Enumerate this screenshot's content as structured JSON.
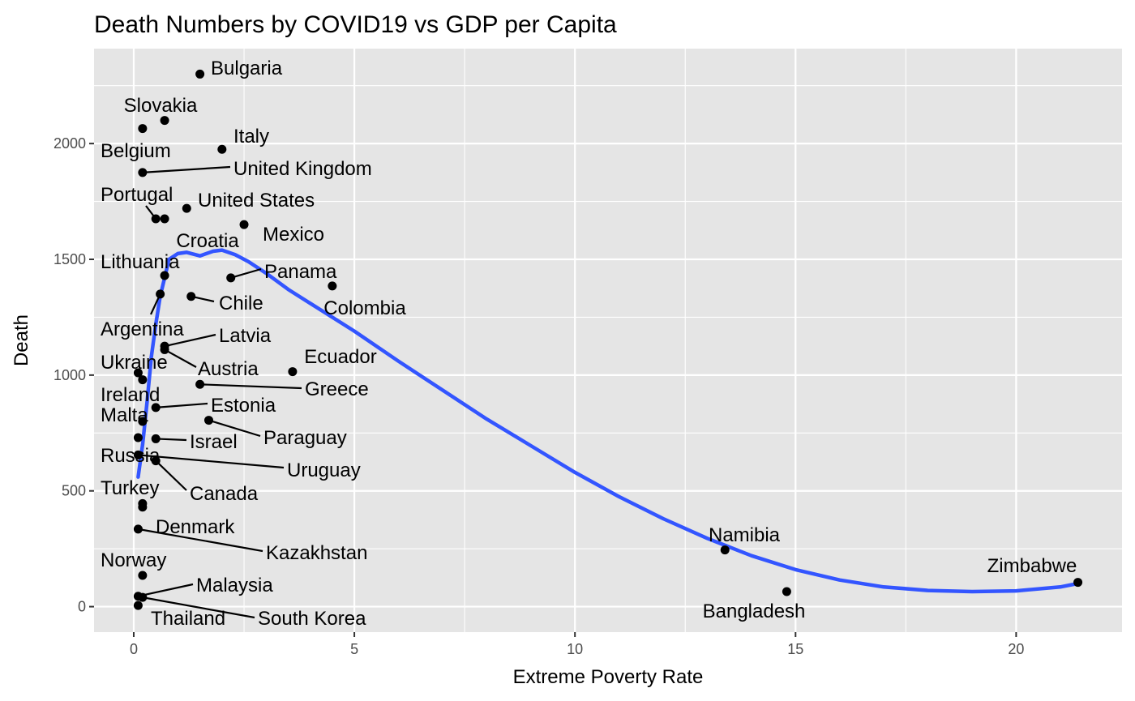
{
  "chart_data": {
    "type": "scatter",
    "title": "Death Numbers by COVID19 vs GDP per Capita",
    "xlabel": "Extreme Poverty Rate",
    "ylabel": "Death",
    "xlim": [
      -0.9,
      22.4
    ],
    "ylim": [
      -110,
      2410
    ],
    "x_ticks": [
      0,
      5,
      10,
      15,
      20
    ],
    "y_ticks": [
      0,
      500,
      1000,
      1500,
      2000
    ],
    "grid": true,
    "legend": "none",
    "colors": {
      "panel": "#e5e5e5",
      "grid": "#ffffff",
      "point": "#000000",
      "smooth": "#3355ff",
      "tick_text": "#4d4d4d"
    },
    "points": [
      {
        "label": "Bulgaria",
        "x": 1.5,
        "y": 2300
      },
      {
        "label": "Slovakia",
        "x": 0.7,
        "y": 2100
      },
      {
        "label": "Belgium",
        "x": 0.2,
        "y": 2065
      },
      {
        "label": "Italy",
        "x": 2.0,
        "y": 1975
      },
      {
        "label": "United Kingdom",
        "x": 0.2,
        "y": 1875
      },
      {
        "label": "United States",
        "x": 1.2,
        "y": 1720
      },
      {
        "label": "Portugal",
        "x": 0.5,
        "y": 1675
      },
      {
        "label": "Croatia",
        "x": 0.7,
        "y": 1675
      },
      {
        "label": "Mexico",
        "x": 2.5,
        "y": 1650
      },
      {
        "label": "Lithuania",
        "x": 0.7,
        "y": 1430
      },
      {
        "label": "Panama",
        "x": 2.2,
        "y": 1420
      },
      {
        "label": "Colombia",
        "x": 4.5,
        "y": 1385
      },
      {
        "label": "Argentina",
        "x": 0.6,
        "y": 1350
      },
      {
        "label": "Chile",
        "x": 1.3,
        "y": 1340
      },
      {
        "label": "Latvia",
        "x": 0.7,
        "y": 1125
      },
      {
        "label": "Austria",
        "x": 0.7,
        "y": 1110
      },
      {
        "label": "Ecuador",
        "x": 3.6,
        "y": 1015
      },
      {
        "label": "Ukraine",
        "x": 0.1,
        "y": 1010
      },
      {
        "label": "Ireland",
        "x": 0.2,
        "y": 980
      },
      {
        "label": "Greece",
        "x": 1.5,
        "y": 960
      },
      {
        "label": "Estonia",
        "x": 0.5,
        "y": 860
      },
      {
        "label": "Paraguay",
        "x": 1.7,
        "y": 805
      },
      {
        "label": "Malta",
        "x": 0.2,
        "y": 800
      },
      {
        "label": "Israel",
        "x": 0.5,
        "y": 725
      },
      {
        "label": "Russia",
        "x": 0.1,
        "y": 730
      },
      {
        "label": "Uruguay",
        "x": 0.1,
        "y": 655
      },
      {
        "label": "Canada",
        "x": 0.5,
        "y": 630
      },
      {
        "label": "Turkey",
        "x": 0.2,
        "y": 445
      },
      {
        "label": "Denmark",
        "x": 0.2,
        "y": 430
      },
      {
        "label": "Kazakhstan",
        "x": 0.1,
        "y": 335
      },
      {
        "label": "Namibia",
        "x": 13.4,
        "y": 245
      },
      {
        "label": "Norway",
        "x": 0.2,
        "y": 135
      },
      {
        "label": "Zimbabwe",
        "x": 21.4,
        "y": 105
      },
      {
        "label": "Bangladesh",
        "x": 14.8,
        "y": 65
      },
      {
        "label": "Malaysia",
        "x": 0.1,
        "y": 45
      },
      {
        "label": "South Korea",
        "x": 0.2,
        "y": 40
      },
      {
        "label": "Thailand",
        "x": 0.1,
        "y": 5
      }
    ],
    "smooth_curve": [
      [
        0.1,
        560
      ],
      [
        0.2,
        700
      ],
      [
        0.3,
        880
      ],
      [
        0.4,
        1080
      ],
      [
        0.5,
        1220
      ],
      [
        0.6,
        1340
      ],
      [
        0.8,
        1500
      ],
      [
        1.0,
        1525
      ],
      [
        1.2,
        1530
      ],
      [
        1.5,
        1515
      ],
      [
        1.8,
        1535
      ],
      [
        2.0,
        1540
      ],
      [
        2.3,
        1520
      ],
      [
        2.6,
        1490
      ],
      [
        3.0,
        1440
      ],
      [
        3.5,
        1370
      ],
      [
        4.0,
        1310
      ],
      [
        5.0,
        1190
      ],
      [
        6.0,
        1060
      ],
      [
        7.0,
        935
      ],
      [
        8.0,
        810
      ],
      [
        9.0,
        695
      ],
      [
        10.0,
        580
      ],
      [
        11.0,
        475
      ],
      [
        12.0,
        380
      ],
      [
        13.0,
        295
      ],
      [
        14.0,
        220
      ],
      [
        15.0,
        160
      ],
      [
        16.0,
        115
      ],
      [
        17.0,
        85
      ],
      [
        18.0,
        70
      ],
      [
        19.0,
        65
      ],
      [
        20.0,
        68
      ],
      [
        21.0,
        85
      ],
      [
        21.4,
        100
      ]
    ]
  }
}
